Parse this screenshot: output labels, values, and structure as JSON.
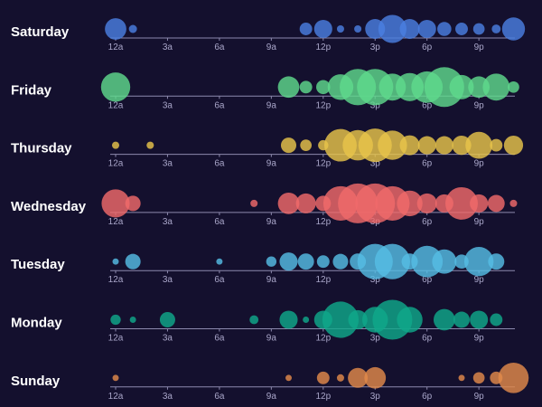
{
  "chart_data": {
    "type": "scatter",
    "subtype": "punchcard-bubble",
    "title": "",
    "x_tick_labels": [
      "12a",
      "3a",
      "6a",
      "9a",
      "12p",
      "3p",
      "6p",
      "9p"
    ],
    "hours": [
      0,
      1,
      2,
      3,
      4,
      5,
      6,
      7,
      8,
      9,
      10,
      11,
      12,
      13,
      14,
      15,
      16,
      17,
      18,
      19,
      20,
      21,
      22,
      23
    ],
    "max_value": 12,
    "series": [
      {
        "name": "Saturday",
        "color": "#4a7fe0",
        "values": [
          3.5,
          0.5,
          0,
          0,
          0,
          0,
          0,
          0,
          0,
          0,
          0,
          1.2,
          2.5,
          0.4,
          0.4,
          3,
          6,
          3,
          2.5,
          1.5,
          1.2,
          1,
          0.6,
          4
        ]
      },
      {
        "name": "Friday",
        "color": "#5fd98c",
        "values": [
          6.5,
          0,
          0,
          0,
          0,
          0,
          0,
          0,
          0,
          0,
          3.5,
          1.2,
          1.5,
          5,
          10,
          10,
          5.5,
          6,
          7.5,
          12,
          4.5,
          3.5,
          5.5,
          1
        ]
      },
      {
        "name": "Thursday",
        "color": "#e8c54a",
        "values": [
          0.4,
          0,
          0.4,
          0,
          0,
          0,
          0,
          0,
          0,
          0,
          1.8,
          1,
          0.8,
          8,
          7,
          8.5,
          6.5,
          3,
          2.5,
          2.5,
          2.8,
          5.5,
          1.2,
          2.8
        ]
      },
      {
        "name": "Wednesday",
        "color": "#f06a6a",
        "values": [
          6,
          1.8,
          0,
          0,
          0,
          0,
          0,
          0,
          0.4,
          0,
          3.5,
          3,
          1.8,
          9,
          12,
          12,
          9,
          5,
          3,
          2.5,
          8,
          2.5,
          2.2,
          0.4
        ]
      },
      {
        "name": "Tuesday",
        "color": "#55bde4",
        "values": [
          0.3,
          1.8,
          0,
          0,
          0,
          0,
          0.3,
          0,
          0,
          0.8,
          2.5,
          2,
          1.2,
          1.8,
          2,
          9.5,
          9.5,
          2,
          7.5,
          4.5,
          1.5,
          6.5,
          2,
          0
        ]
      },
      {
        "name": "Monday",
        "color": "#10a88a",
        "values": [
          0.8,
          0.3,
          0,
          1.8,
          0,
          0,
          0,
          0,
          0.6,
          0,
          2.5,
          0.3,
          2.5,
          10,
          2.8,
          5,
          12,
          5,
          0,
          3.5,
          2,
          2.5,
          1.2,
          0
        ]
      },
      {
        "name": "Sunday",
        "color": "#e28a4a",
        "values": [
          0.3,
          0,
          0,
          0,
          0,
          0,
          0,
          0,
          0,
          0,
          0.3,
          0,
          1.2,
          0.4,
          3,
          3.5,
          0,
          0,
          0,
          0,
          0.3,
          1,
          1.2,
          7
        ]
      }
    ]
  }
}
